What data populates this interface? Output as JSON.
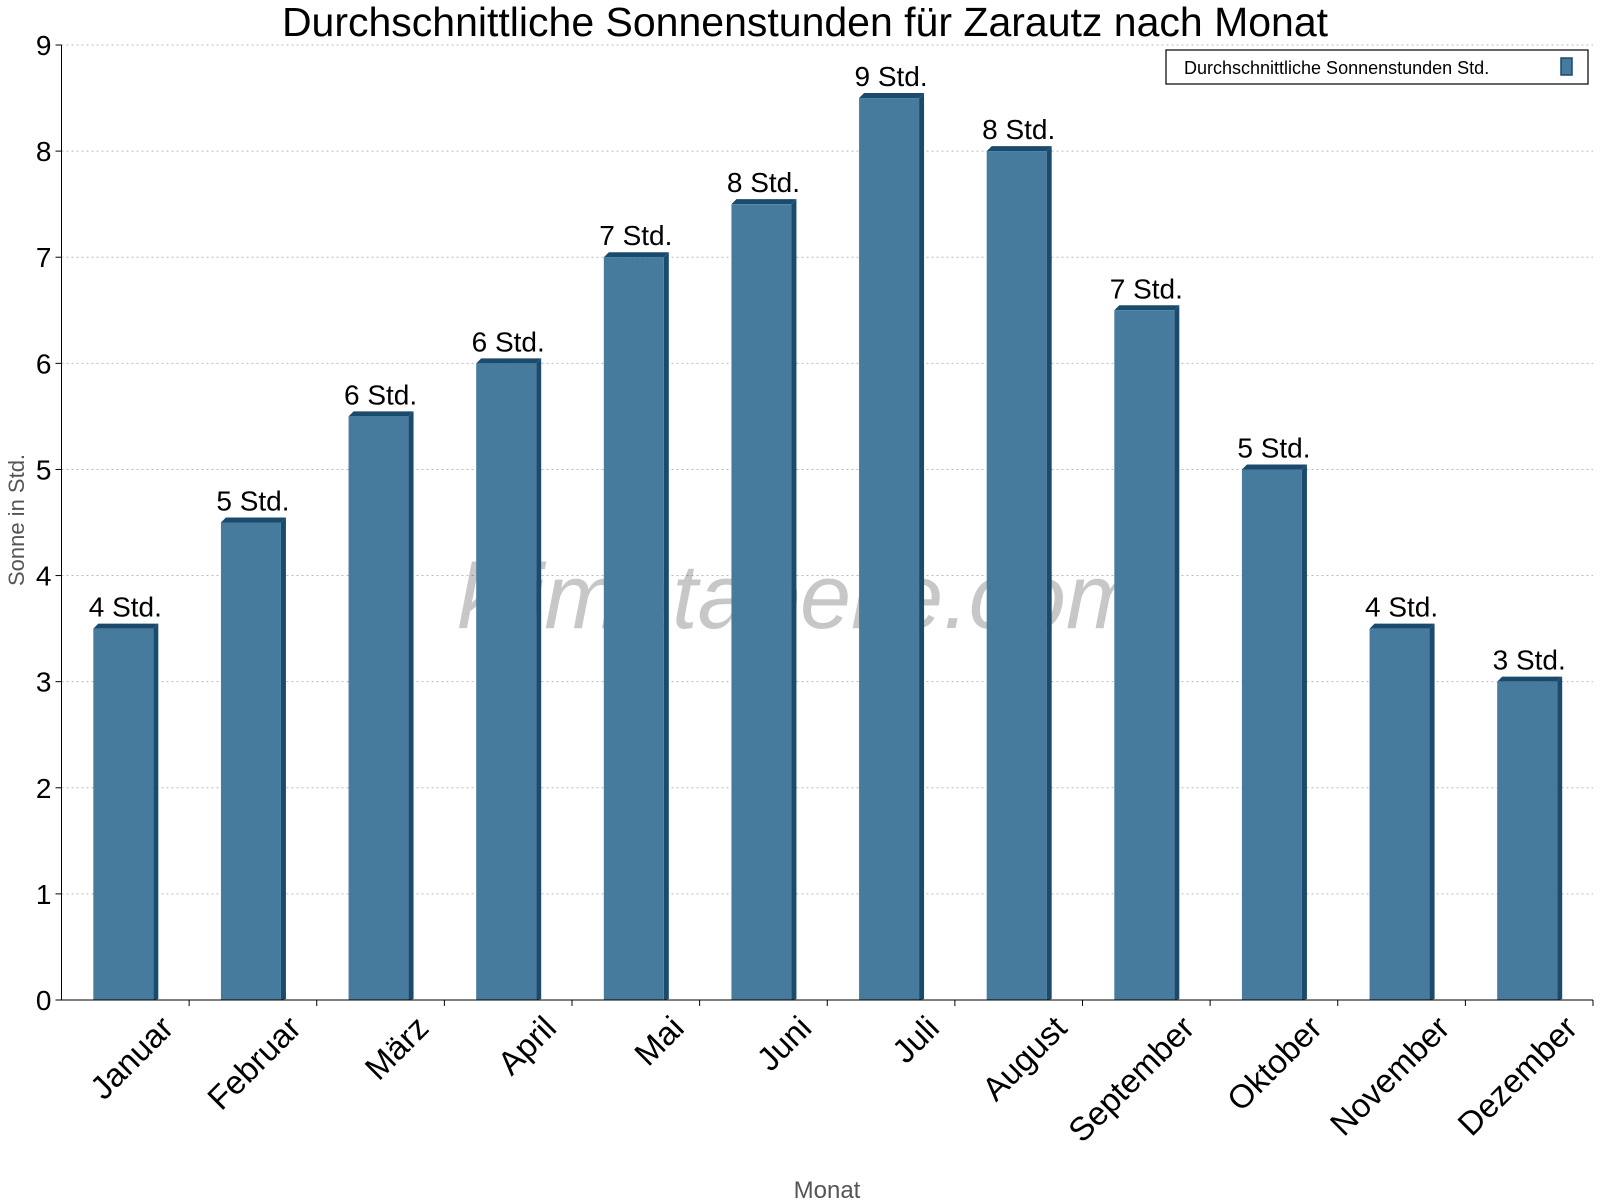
{
  "chart_data": {
    "type": "bar",
    "title": "Durchschnittliche Sonnenstunden für Zarautz nach Monat",
    "xlabel": "Monat",
    "ylabel": "Sonne in Std.",
    "ylim": [
      0,
      9
    ],
    "yticks": [
      "0",
      "1",
      "2",
      "3",
      "4",
      "5",
      "6",
      "7",
      "8",
      "9"
    ],
    "grid": true,
    "legend_position": "top-right",
    "categories": [
      "Januar",
      "Februar",
      "März",
      "April",
      "Mai",
      "Juni",
      "Juli",
      "August",
      "September",
      "Oktober",
      "November",
      "Dezember"
    ],
    "series": [
      {
        "name": "Durchschnittliche Sonnenstunden Std.",
        "color": "#467b9e",
        "values": [
          3.5,
          4.5,
          5.5,
          6,
          7,
          7.5,
          8.5,
          8,
          6.5,
          5,
          3.5,
          3
        ],
        "data_labels": [
          "4 Std.",
          "5 Std.",
          "6 Std.",
          "6 Std.",
          "7 Std.",
          "8 Std.",
          "9 Std.",
          "8 Std.",
          "7 Std.",
          "5 Std.",
          "4 Std.",
          "3 Std."
        ]
      }
    ],
    "watermark": "klimatabelle.com"
  }
}
